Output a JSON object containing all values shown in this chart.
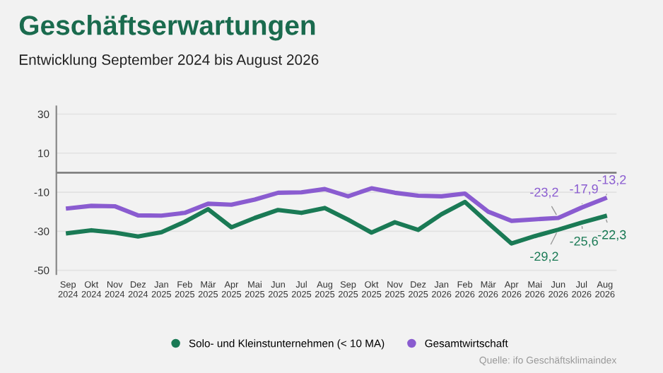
{
  "chart_data": {
    "type": "line",
    "title": "Geschäftserwartungen",
    "subtitle": "Entwicklung September 2024 bis August 2026",
    "categories": [
      "Sep\n2024",
      "Okt\n2024",
      "Nov\n2024",
      "Dez\n2024",
      "Jan\n2025",
      "Feb\n2025",
      "Mär\n2025",
      "Apr\n2025",
      "Mai\n2025",
      "Jun\n2025",
      "Jul\n2025",
      "Aug\n2025",
      "Sep\n2025",
      "Okt\n2025",
      "Nov\n2025",
      "Dez\n2025",
      "Jan\n2026",
      "Feb\n2026",
      "Mär\n2026",
      "Apr\n2026",
      "Mai\n2026",
      "Jun\n2026",
      "Jul\n2026",
      "Aug\n2026"
    ],
    "series": [
      {
        "name": "Solo- und Kleinstunternehmen (< 10 MA)",
        "color": "#1a7a55",
        "values": [
          -31,
          -29.5,
          -30.7,
          -32.7,
          -30.5,
          -25.2,
          -18.7,
          -28,
          -23.2,
          -19.1,
          -20.6,
          -18.1,
          -24.1,
          -30.7,
          -25.4,
          -29.3,
          -21.3,
          -15,
          -25.8,
          -36.3,
          -32.5,
          -29.2,
          -25.6,
          -22.3
        ],
        "value_labels": [
          null,
          null,
          null,
          null,
          null,
          null,
          null,
          null,
          null,
          null,
          null,
          null,
          null,
          null,
          null,
          null,
          null,
          null,
          null,
          null,
          null,
          "-29,2",
          "-25,6",
          "-22,3"
        ]
      },
      {
        "name": "Gesamtwirtschaft",
        "color": "#8a5cd0",
        "values": [
          -18.3,
          -17,
          -17.2,
          -21.9,
          -22,
          -20.6,
          -15.9,
          -16.4,
          -13.8,
          -10.3,
          -10.1,
          -8.4,
          -12.1,
          -8,
          -10.3,
          -11.8,
          -12.1,
          -10.7,
          -20,
          -24.7,
          -23.9,
          -23.2,
          -17.9,
          -13.2
        ],
        "value_labels": [
          null,
          null,
          null,
          null,
          null,
          null,
          null,
          null,
          null,
          null,
          null,
          null,
          null,
          null,
          null,
          null,
          null,
          null,
          null,
          null,
          null,
          "-23,2",
          "-17,9",
          "-13,2"
        ]
      }
    ],
    "ylim": [
      -52,
      34
    ],
    "yticks": [
      30,
      10,
      -10,
      -30,
      -50
    ],
    "grid": "y",
    "legend": "bottom",
    "marker": "none",
    "line_style": "solid",
    "ref_lines": [
      {
        "axis": "y",
        "value": 0,
        "color": "#777777"
      }
    ],
    "annotations": [
      "Quelle: ifo Geschäftsklimaindex"
    ]
  }
}
